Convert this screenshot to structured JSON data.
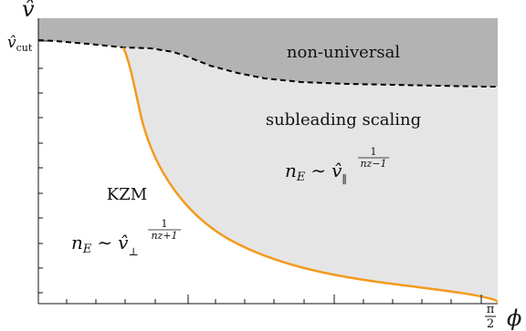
{
  "axes": {
    "y_axis_label": "v̂",
    "y_tick_label": "v̂",
    "y_tick_subscript": "cut",
    "x_axis_label": "ϕ",
    "x_tick_numerator": "π",
    "x_tick_denominator": "2"
  },
  "regions": {
    "non_universal": {
      "label": "non-universal",
      "color": "#b3b3b3"
    },
    "subleading": {
      "label": "subleading scaling",
      "color": "#e5e5e5"
    },
    "kzm": {
      "label": "KZM",
      "color": "#ffffff"
    }
  },
  "formulas": {
    "subleading": {
      "lhs_var": "n",
      "lhs_sub": "E",
      "relation": "∼",
      "base": "v̂",
      "base_sub": "∥",
      "exp_num": "1",
      "exp_den": "nz−1"
    },
    "kzm": {
      "lhs_var": "n",
      "lhs_sub": "E",
      "relation": "∼",
      "base": "v̂",
      "base_sub": "⊥",
      "exp_num": "1",
      "exp_den": "nz+1"
    }
  },
  "curves": {
    "boundary_dashed": {
      "color": "#000000",
      "style": "dashed"
    },
    "kzm_boundary": {
      "color": "#f39a1e",
      "style": "solid"
    }
  }
}
